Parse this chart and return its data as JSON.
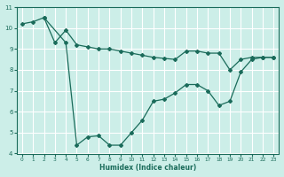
{
  "xlabel": "Humidex (Indice chaleur)",
  "bg_color": "#cceee8",
  "grid_color": "#ffffff",
  "line_color": "#1a6b5a",
  "line1_x": [
    0,
    1,
    2,
    3,
    4,
    5,
    6,
    7,
    8,
    9,
    10,
    11,
    12,
    13,
    14,
    15,
    16,
    17,
    18,
    19,
    20,
    21,
    22,
    23
  ],
  "line1_y": [
    10.2,
    10.3,
    10.5,
    9.3,
    9.9,
    9.2,
    9.1,
    9.0,
    9.0,
    8.9,
    8.8,
    8.7,
    8.6,
    8.55,
    8.5,
    8.9,
    8.9,
    8.8,
    8.8,
    8.0,
    8.5,
    8.6,
    8.6,
    8.6
  ],
  "line2_x": [
    2,
    4,
    5,
    6,
    7,
    8,
    9,
    10,
    11,
    12,
    13,
    14,
    15,
    16,
    17,
    18,
    19,
    20,
    21,
    22,
    23
  ],
  "line2_y": [
    10.5,
    9.3,
    4.4,
    4.8,
    4.85,
    4.4,
    4.4,
    5.0,
    5.6,
    6.5,
    6.6,
    6.9,
    7.3,
    7.3,
    7.0,
    6.3,
    6.5,
    7.9,
    8.5,
    8.6,
    8.6
  ],
  "xlim_min": -0.5,
  "xlim_max": 23.5,
  "ylim_min": 4,
  "ylim_max": 11,
  "yticks": [
    4,
    5,
    6,
    7,
    8,
    9,
    10,
    11
  ],
  "xticks": [
    0,
    1,
    2,
    3,
    4,
    5,
    6,
    7,
    8,
    9,
    10,
    11,
    12,
    13,
    14,
    15,
    16,
    17,
    18,
    19,
    20,
    21,
    22,
    23
  ]
}
